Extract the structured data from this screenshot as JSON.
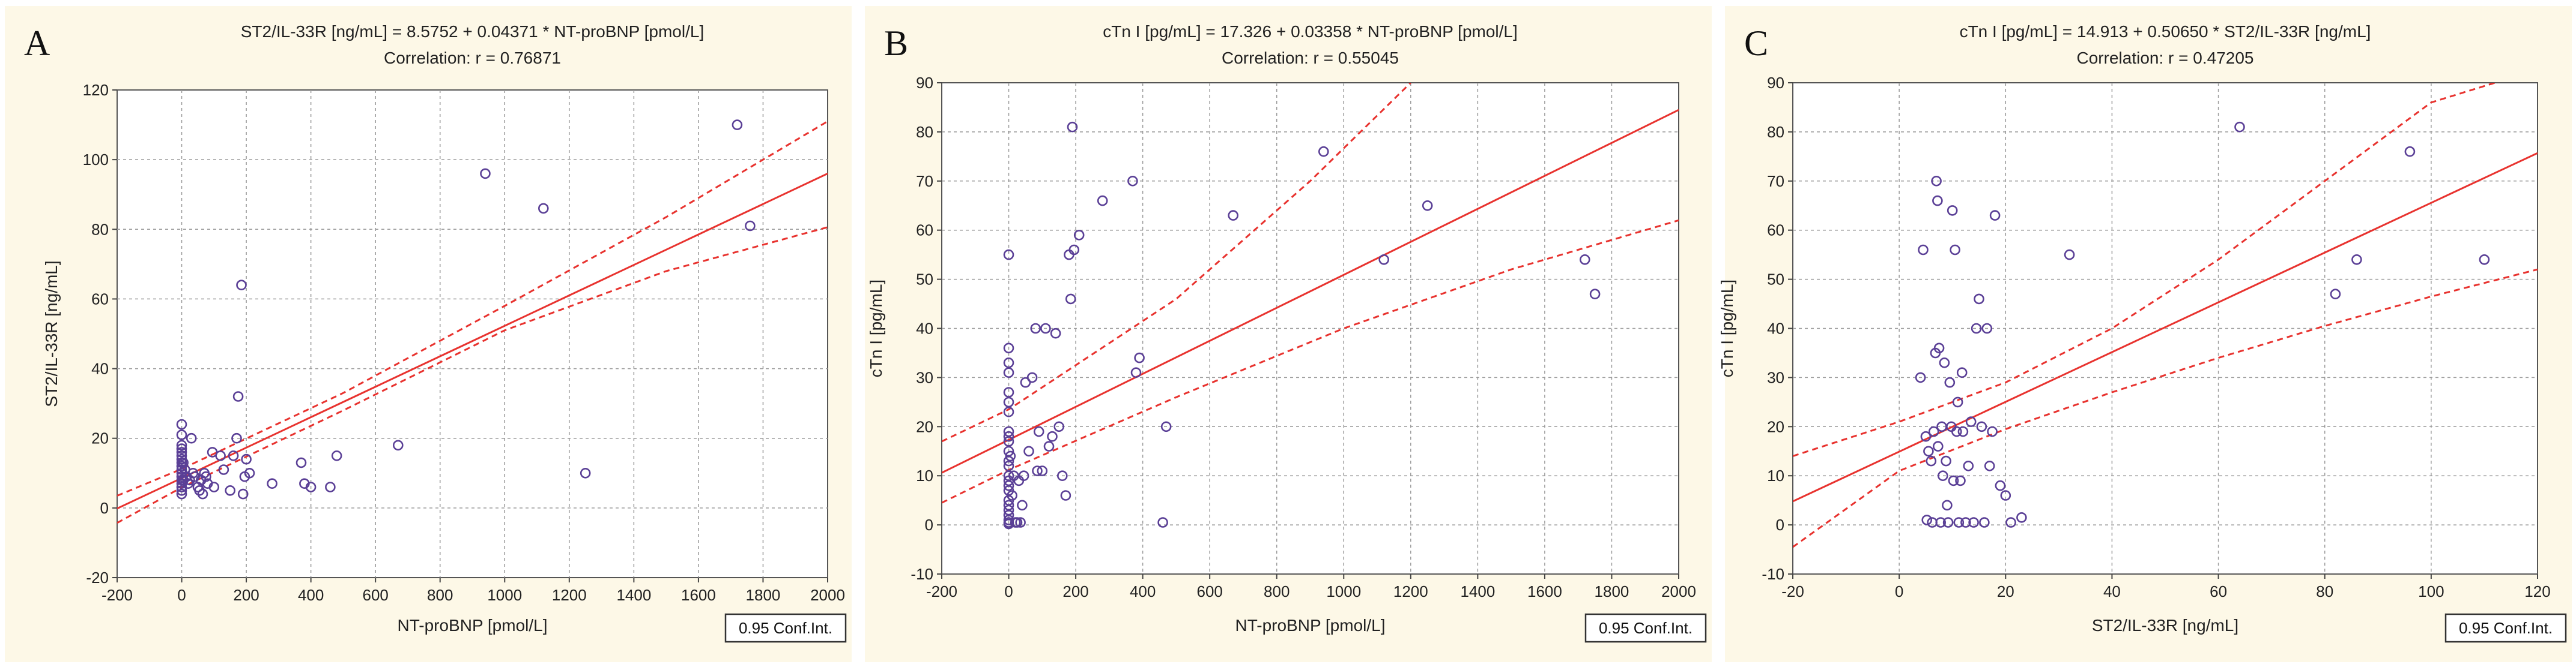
{
  "chart_data": [
    {
      "type": "scatter",
      "panel_letter": "A",
      "title": "ST2/IL-33R [ng/mL] = 8.5752 + 0.04371 * NT-proBNP [pmol/L]",
      "subtitle": "Correlation: r = 0.76871",
      "xlabel": "NT-proBNP [pmol/L]",
      "ylabel": "ST2/IL-33R [ng/mL]",
      "xlim": [
        -200,
        2000
      ],
      "ylim": [
        -20,
        120
      ],
      "xticks": [
        -200,
        0,
        200,
        400,
        600,
        800,
        1000,
        1200,
        1400,
        1600,
        1800,
        2000
      ],
      "yticks": [
        -20,
        0,
        20,
        40,
        60,
        80,
        100,
        120
      ],
      "grid": true,
      "fit": {
        "intercept": 8.5752,
        "slope": 0.04371
      },
      "ci_label": "0.95 Conf.Int.",
      "ci_upper": [
        [
          -200,
          3.5
        ],
        [
          0,
          11.2
        ],
        [
          500,
          33
        ],
        [
          1000,
          58
        ],
        [
          1500,
          83.5
        ],
        [
          2000,
          111
        ]
      ],
      "ci_lower": [
        [
          -200,
          -4.3
        ],
        [
          0,
          5.9
        ],
        [
          500,
          28
        ],
        [
          1000,
          51
        ],
        [
          1500,
          68
        ],
        [
          2000,
          80.6
        ]
      ],
      "points": [
        [
          0,
          24
        ],
        [
          0,
          21
        ],
        [
          0,
          18
        ],
        [
          0,
          17
        ],
        [
          0,
          16
        ],
        [
          0,
          15
        ],
        [
          0,
          14
        ],
        [
          0,
          13
        ],
        [
          0,
          12
        ],
        [
          0,
          11
        ],
        [
          0,
          10
        ],
        [
          0,
          9
        ],
        [
          0,
          8
        ],
        [
          0,
          7
        ],
        [
          0,
          6
        ],
        [
          0,
          5
        ],
        [
          0,
          4
        ],
        [
          5,
          13
        ],
        [
          5,
          8
        ],
        [
          10,
          11
        ],
        [
          15,
          9
        ],
        [
          20,
          7
        ],
        [
          25,
          8
        ],
        [
          30,
          20
        ],
        [
          35,
          10
        ],
        [
          40,
          9
        ],
        [
          50,
          6
        ],
        [
          55,
          5
        ],
        [
          60,
          8
        ],
        [
          65,
          4
        ],
        [
          70,
          10
        ],
        [
          75,
          9
        ],
        [
          80,
          7
        ],
        [
          95,
          16
        ],
        [
          100,
          6
        ],
        [
          120,
          15
        ],
        [
          130,
          11
        ],
        [
          150,
          5
        ],
        [
          160,
          15
        ],
        [
          170,
          20
        ],
        [
          175,
          32
        ],
        [
          185,
          64
        ],
        [
          190,
          4
        ],
        [
          195,
          9
        ],
        [
          200,
          14
        ],
        [
          210,
          10
        ],
        [
          280,
          7
        ],
        [
          370,
          13
        ],
        [
          380,
          7
        ],
        [
          400,
          6
        ],
        [
          460,
          6
        ],
        [
          480,
          15
        ],
        [
          670,
          18
        ],
        [
          940,
          96
        ],
        [
          1120,
          86
        ],
        [
          1250,
          10
        ],
        [
          1720,
          110
        ],
        [
          1760,
          81
        ]
      ]
    },
    {
      "type": "scatter",
      "panel_letter": "B",
      "title": "cTn I [pg/mL] = 17.326 + 0.03358 * NT-proBNP [pmol/L]",
      "subtitle": "Correlation: r = 0.55045",
      "xlabel": "NT-proBNP [pmol/L]",
      "ylabel": "cTn I [pg/mL]",
      "xlim": [
        -200,
        2000
      ],
      "ylim": [
        -10,
        90
      ],
      "xticks": [
        -200,
        0,
        200,
        400,
        600,
        800,
        1000,
        1200,
        1400,
        1600,
        1800,
        2000
      ],
      "yticks": [
        -10,
        0,
        10,
        20,
        30,
        40,
        50,
        60,
        70,
        80,
        90
      ],
      "grid": true,
      "fit": {
        "intercept": 17.326,
        "slope": 0.03358
      },
      "ci_label": "0.95 Conf.Int.",
      "ci_upper": [
        [
          -200,
          17
        ],
        [
          0,
          23.5
        ],
        [
          500,
          46
        ],
        [
          900,
          70
        ],
        [
          1200,
          90
        ]
      ],
      "ci_lower": [
        [
          -200,
          4.5
        ],
        [
          0,
          11.2
        ],
        [
          500,
          26
        ],
        [
          1000,
          40
        ],
        [
          1500,
          52
        ],
        [
          2000,
          62
        ]
      ],
      "points": [
        [
          0,
          55
        ],
        [
          0,
          36
        ],
        [
          0,
          33
        ],
        [
          0,
          31
        ],
        [
          0,
          27
        ],
        [
          0,
          25
        ],
        [
          0,
          23
        ],
        [
          0,
          19
        ],
        [
          0,
          18
        ],
        [
          0,
          17
        ],
        [
          0,
          15
        ],
        [
          0,
          13
        ],
        [
          0,
          12
        ],
        [
          0,
          10
        ],
        [
          0,
          9
        ],
        [
          0,
          8
        ],
        [
          0,
          7
        ],
        [
          0,
          5
        ],
        [
          0,
          4
        ],
        [
          0,
          3
        ],
        [
          0,
          2
        ],
        [
          0,
          1
        ],
        [
          0,
          0.5
        ],
        [
          0,
          0.2
        ],
        [
          5,
          14
        ],
        [
          10,
          6
        ],
        [
          15,
          10
        ],
        [
          20,
          0.5
        ],
        [
          25,
          0.5
        ],
        [
          30,
          9
        ],
        [
          35,
          0.5
        ],
        [
          40,
          4
        ],
        [
          45,
          10
        ],
        [
          50,
          29
        ],
        [
          60,
          15
        ],
        [
          70,
          30
        ],
        [
          80,
          40
        ],
        [
          85,
          11
        ],
        [
          90,
          19
        ],
        [
          100,
          11
        ],
        [
          110,
          40
        ],
        [
          120,
          16
        ],
        [
          130,
          18
        ],
        [
          140,
          39
        ],
        [
          150,
          20
        ],
        [
          160,
          10
        ],
        [
          170,
          6
        ],
        [
          180,
          55
        ],
        [
          185,
          46
        ],
        [
          190,
          81
        ],
        [
          195,
          56
        ],
        [
          210,
          59
        ],
        [
          280,
          66
        ],
        [
          370,
          70
        ],
        [
          380,
          31
        ],
        [
          390,
          34
        ],
        [
          460,
          0.5
        ],
        [
          470,
          20
        ],
        [
          670,
          63
        ],
        [
          940,
          76
        ],
        [
          1120,
          54
        ],
        [
          1250,
          65
        ],
        [
          1720,
          54
        ],
        [
          1750,
          47
        ]
      ]
    },
    {
      "type": "scatter",
      "panel_letter": "C",
      "title": "cTn I [pg/mL] = 14.913 + 0.50650 * ST2/IL-33R [ng/mL]",
      "subtitle": "Correlation: r = 0.47205",
      "xlabel": "ST2/IL-33R [ng/mL]",
      "ylabel": "cTn I [pg/mL]",
      "xlim": [
        -20,
        120
      ],
      "ylim": [
        -10,
        90
      ],
      "xticks": [
        -20,
        0,
        20,
        40,
        60,
        80,
        100,
        120
      ],
      "yticks": [
        -10,
        0,
        10,
        20,
        30,
        40,
        50,
        60,
        70,
        80,
        90
      ],
      "grid": true,
      "fit": {
        "intercept": 14.913,
        "slope": 0.5065
      },
      "ci_label": "0.95 Conf.Int.",
      "ci_upper": [
        [
          -20,
          14
        ],
        [
          0,
          21
        ],
        [
          20,
          29
        ],
        [
          40,
          40
        ],
        [
          60,
          54
        ],
        [
          80,
          70
        ],
        [
          100,
          86
        ],
        [
          112,
          90
        ]
      ],
      "ci_lower": [
        [
          -20,
          -4.5
        ],
        [
          0,
          11
        ],
        [
          20,
          19.5
        ],
        [
          40,
          27
        ],
        [
          60,
          34
        ],
        [
          80,
          40.5
        ],
        [
          100,
          46.5
        ],
        [
          120,
          52
        ]
      ],
      "points": [
        [
          4,
          30
        ],
        [
          4.5,
          56
        ],
        [
          5,
          18
        ],
        [
          5.2,
          1
        ],
        [
          5.5,
          15
        ],
        [
          6,
          13
        ],
        [
          6.2,
          0.5
        ],
        [
          6.5,
          19
        ],
        [
          6.8,
          35
        ],
        [
          7,
          70
        ],
        [
          7.2,
          66
        ],
        [
          7.3,
          16
        ],
        [
          7.5,
          36
        ],
        [
          7.8,
          0.5
        ],
        [
          8,
          20
        ],
        [
          8.2,
          10
        ],
        [
          8.5,
          33
        ],
        [
          8.8,
          13
        ],
        [
          9,
          4
        ],
        [
          9.2,
          0.5
        ],
        [
          9.5,
          29
        ],
        [
          9.8,
          20
        ],
        [
          10,
          64
        ],
        [
          10.2,
          9
        ],
        [
          10.5,
          56
        ],
        [
          10.8,
          19
        ],
        [
          11,
          25
        ],
        [
          11.2,
          0.5
        ],
        [
          11.5,
          9
        ],
        [
          11.8,
          31
        ],
        [
          12,
          19
        ],
        [
          12.5,
          0.5
        ],
        [
          13,
          12
        ],
        [
          13.5,
          21
        ],
        [
          14,
          0.5
        ],
        [
          14.5,
          40
        ],
        [
          15,
          46
        ],
        [
          15.5,
          20
        ],
        [
          16,
          0.5
        ],
        [
          16.5,
          40
        ],
        [
          17,
          12
        ],
        [
          17.5,
          19
        ],
        [
          18,
          63
        ],
        [
          19,
          8
        ],
        [
          20,
          6
        ],
        [
          21,
          0.5
        ],
        [
          23,
          1.5
        ],
        [
          32,
          55
        ],
        [
          64,
          81
        ],
        [
          82,
          47
        ],
        [
          86,
          54
        ],
        [
          96,
          76
        ],
        [
          110,
          54
        ]
      ]
    }
  ]
}
